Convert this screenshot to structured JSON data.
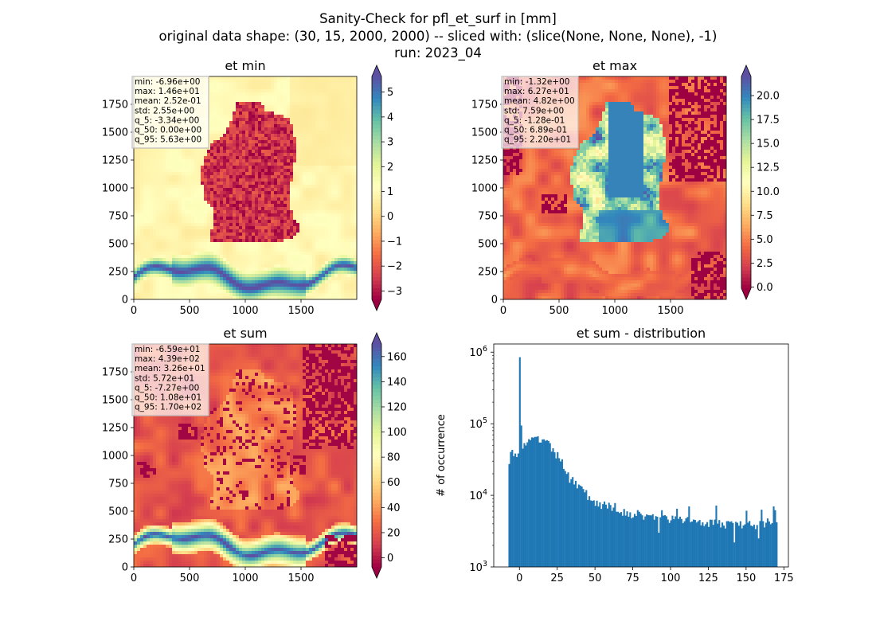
{
  "figure": {
    "suptitle_lines": [
      "Sanity-Check for pfl_et_surf in [mm]",
      "original data shape: (30, 15, 2000, 2000) -- sliced with: (slice(None, None, None), -1)",
      "run: 2023_04"
    ]
  },
  "chart_data": [
    {
      "type": "heatmap",
      "title": "et min",
      "xlim": [
        0,
        2000
      ],
      "ylim": [
        0,
        2000
      ],
      "xticks": [
        0,
        500,
        1000,
        1500
      ],
      "yticks": [
        0,
        250,
        500,
        750,
        1000,
        1250,
        1500,
        1750
      ],
      "colormap": "Spectral",
      "colorbar": {
        "range": [
          -3.34,
          5.63
        ],
        "ticks": [
          "−3",
          "−2",
          "−1",
          "0",
          "1",
          "2",
          "3",
          "4",
          "5"
        ],
        "tick_values": [
          -3,
          -2,
          -1,
          0,
          1,
          2,
          3,
          4,
          5
        ],
        "extend": "both"
      },
      "stats": [
        "min: -6.96e+00",
        "max: 1.46e+01",
        "mean: 2.52e-01",
        "std: 2.55e+00",
        "q_5: -3.34e+00",
        "q_50: 0.00e+00",
        "q_95: 5.63e+00"
      ]
    },
    {
      "type": "heatmap",
      "title": "et max",
      "xlim": [
        0,
        2000
      ],
      "ylim": [
        0,
        2000
      ],
      "xticks": [
        0,
        500,
        1000,
        1500
      ],
      "yticks": [
        0,
        250,
        500,
        750,
        1000,
        1250,
        1500,
        1750
      ],
      "colormap": "Spectral",
      "colorbar": {
        "range": [
          -0.128,
          22.0
        ],
        "ticks": [
          "0.0",
          "2.5",
          "5.0",
          "7.5",
          "10.0",
          "12.5",
          "15.0",
          "17.5",
          "20.0"
        ],
        "tick_values": [
          0,
          2.5,
          5,
          7.5,
          10,
          12.5,
          15,
          17.5,
          20
        ],
        "extend": "both"
      },
      "stats": [
        "min: -1.32e+00",
        "max: 6.27e+01",
        "mean: 4.82e+00",
        "std: 7.59e+00",
        "q_5: -1.28e-01",
        "q_50: 6.89e-01",
        "q_95: 2.20e+01"
      ]
    },
    {
      "type": "heatmap",
      "title": "et sum",
      "xlim": [
        0,
        2000
      ],
      "ylim": [
        0,
        2000
      ],
      "xticks": [
        0,
        500,
        1000,
        1500
      ],
      "yticks": [
        0,
        250,
        500,
        750,
        1000,
        1250,
        1500,
        1750
      ],
      "colormap": "Spectral",
      "colorbar": {
        "range": [
          -7.27,
          170
        ],
        "ticks": [
          "0",
          "20",
          "40",
          "60",
          "80",
          "100",
          "120",
          "140",
          "160"
        ],
        "tick_values": [
          0,
          20,
          40,
          60,
          80,
          100,
          120,
          140,
          160
        ],
        "extend": "both"
      },
      "stats": [
        "min: -6.59e+01",
        "max: 4.39e+02",
        "mean: 3.26e+01",
        "std: 5.72e+01",
        "q_5: -7.27e+00",
        "q_50: 1.08e+01",
        "q_95: 1.70e+02"
      ]
    },
    {
      "type": "bar",
      "title": "et sum - distribution",
      "ylabel": "# of occurrence",
      "xlabel": "",
      "yscale": "log",
      "xlim": [
        -17,
        178
      ],
      "ylim": [
        1000,
        1300000
      ],
      "xticks": [
        0,
        25,
        50,
        75,
        100,
        125,
        150,
        175
      ],
      "ytick_exponents": [
        3,
        4,
        5,
        6
      ],
      "bar_color": "#1f77b4",
      "bins": {
        "start": -7.27,
        "end": 170.0,
        "step": 1.0
      },
      "envelope": [
        [
          -7.27,
          30000
        ],
        [
          -6,
          40000
        ],
        [
          -4,
          35000
        ],
        [
          -2,
          37000
        ],
        [
          -1,
          45000
        ],
        [
          0,
          850000
        ],
        [
          1,
          48000
        ],
        [
          3,
          52000
        ],
        [
          6,
          55000
        ],
        [
          9,
          60000
        ],
        [
          12,
          60000
        ],
        [
          15,
          58000
        ],
        [
          18,
          52000
        ],
        [
          22,
          42000
        ],
        [
          26,
          32000
        ],
        [
          30,
          24000
        ],
        [
          35,
          17000
        ],
        [
          40,
          12500
        ],
        [
          45,
          9800
        ],
        [
          50,
          8000
        ],
        [
          60,
          6800
        ],
        [
          70,
          5800
        ],
        [
          80,
          5300
        ],
        [
          90,
          5000
        ],
        [
          100,
          4700
        ],
        [
          110,
          4500
        ],
        [
          120,
          4400
        ],
        [
          130,
          4100
        ],
        [
          140,
          3900
        ],
        [
          150,
          3800
        ],
        [
          160,
          4000
        ],
        [
          165,
          4300
        ],
        [
          168,
          5200
        ],
        [
          170,
          4500
        ]
      ],
      "spikes": [
        [
          0,
          850000
        ],
        [
          56,
          8200
        ],
        [
          63,
          7800
        ],
        [
          76,
          5500
        ],
        [
          94,
          6200
        ],
        [
          104,
          6500
        ],
        [
          112,
          7000
        ],
        [
          130,
          7200
        ],
        [
          150,
          6100
        ],
        [
          160,
          6300
        ],
        [
          168,
          7000
        ],
        [
          169,
          6200
        ]
      ],
      "dips": [
        [
          33,
          15000
        ],
        [
          92,
          3000
        ],
        [
          142,
          2200
        ],
        [
          158,
          2500
        ]
      ]
    }
  ]
}
